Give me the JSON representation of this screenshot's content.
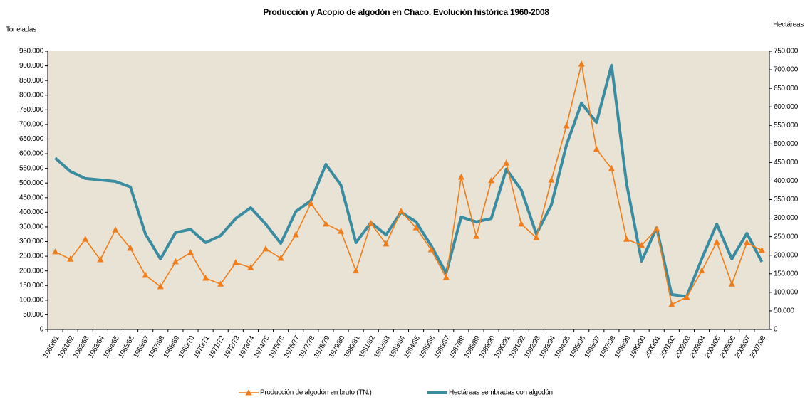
{
  "chart_data": {
    "type": "line",
    "title": "Producción y Acopio de algodón en Chaco. Evolución histórica 1960-2008",
    "y_label": "Toneladas",
    "y2_label": "Hectáreas",
    "categories": [
      "1960/61",
      "1961/62",
      "1962/63",
      "1963/64",
      "1964/65",
      "1965/66",
      "1966/67",
      "1967/68",
      "1968/69",
      "1969/70",
      "1970/71",
      "1971/72",
      "1972/73",
      "1973/74",
      "1974/75",
      "1975/76",
      "1976/77",
      "1977/78",
      "1978/79",
      "1979/80",
      "1980/81",
      "1981/82",
      "1982/83",
      "1983/84",
      "1984/85",
      "1985/86",
      "1986/87",
      "1987/88",
      "1988/89",
      "1989/90",
      "1990/91",
      "1991/92",
      "1992/93",
      "1993/94",
      "1994/95",
      "1995/96",
      "1996/97",
      "1997/98",
      "1998/99",
      "1999/00",
      "2000/01",
      "2001/02",
      "2002/03",
      "2003/04",
      "2004/05",
      "2005/06",
      "2006/07",
      "2007/08"
    ],
    "series": [
      {
        "name": "Producción de algodón en bruto (TN.)",
        "color": "#f07d1a",
        "marker": "triangle",
        "values": [
          265000,
          240000,
          308000,
          238000,
          340000,
          277000,
          185000,
          146000,
          231000,
          262000,
          175000,
          155000,
          228000,
          211000,
          275000,
          243000,
          323000,
          430000,
          360000,
          335000,
          200000,
          362000,
          292000,
          403000,
          347000,
          272000,
          177000,
          520000,
          318000,
          508000,
          568000,
          360000,
          313000,
          510000,
          695000,
          906000,
          615000,
          549000,
          308000,
          287000,
          343000,
          85000,
          110000,
          200000,
          298000,
          155000,
          296000,
          270000
        ]
      },
      {
        "name": "Hectáreas sembradas con algodón",
        "color": "#3a8ca0",
        "axis": "y2",
        "values": [
          462000,
          426000,
          407000,
          403000,
          399000,
          384000,
          257000,
          190000,
          261000,
          270000,
          234000,
          253000,
          299000,
          328000,
          284000,
          232000,
          318000,
          347000,
          445000,
          389000,
          234000,
          288000,
          255000,
          316000,
          290000,
          226000,
          152000,
          303000,
          290000,
          299000,
          432000,
          376000,
          257000,
          336000,
          497000,
          610000,
          558000,
          712000,
          393000,
          184000,
          274000,
          94000,
          89000,
          190000,
          284000,
          190000,
          259000,
          182000
        ]
      }
    ],
    "ylim": [
      0,
      950000
    ],
    "yticks": [
      0,
      {
        "value": 50000,
        "label": "50.000"
      },
      {
        "value": 100000,
        "label": "100.000"
      },
      {
        "value": 150000,
        "label": "150.000"
      },
      {
        "value": 200000,
        "label": "200.000"
      },
      {
        "value": 250000,
        "label": "250.000"
      },
      {
        "value": 300000,
        "label": "300.000"
      },
      {
        "value": 350000,
        "label": "350.000"
      },
      {
        "value": 400000,
        "label": "400.000"
      },
      {
        "value": 450000,
        "label": "450.000"
      },
      {
        "value": 500000,
        "label": "500.000"
      },
      {
        "value": 550000,
        "label": "550.000"
      },
      {
        "value": 600000,
        "label": "600.000"
      },
      {
        "value": 650000,
        "label": "650.000"
      },
      {
        "value": 700000,
        "label": "700.000"
      },
      {
        "value": 750000,
        "label": "750.000"
      },
      {
        "value": 800000,
        "label": "800.000"
      },
      {
        "value": 850000,
        "label": "850.000"
      },
      {
        "value": 900000,
        "label": "900.000"
      },
      {
        "value": 950000,
        "label": "950.000"
      }
    ],
    "y2lim": [
      0,
      750000
    ],
    "y2ticks": [
      0,
      {
        "value": 50000,
        "label": "50.000"
      },
      {
        "value": 100000,
        "label": "100.000"
      },
      {
        "value": 150000,
        "label": "150.000"
      },
      {
        "value": 200000,
        "label": "200.000"
      },
      {
        "value": 250000,
        "label": "250.000"
      },
      {
        "value": 300000,
        "label": "300.000"
      },
      {
        "value": 350000,
        "label": "350.000"
      },
      {
        "value": 400000,
        "label": "400.000"
      },
      {
        "value": 450000,
        "label": "450.000"
      },
      {
        "value": 500000,
        "label": "500.000"
      },
      {
        "value": 550000,
        "label": "550.000"
      },
      {
        "value": 600000,
        "label": "600.000"
      },
      {
        "value": 650000,
        "label": "650.000"
      },
      {
        "value": 700000,
        "label": "700.000"
      },
      {
        "value": 750000,
        "label": "750.000"
      }
    ],
    "plot_background": "#e9e3d6",
    "legend": "bottom"
  }
}
